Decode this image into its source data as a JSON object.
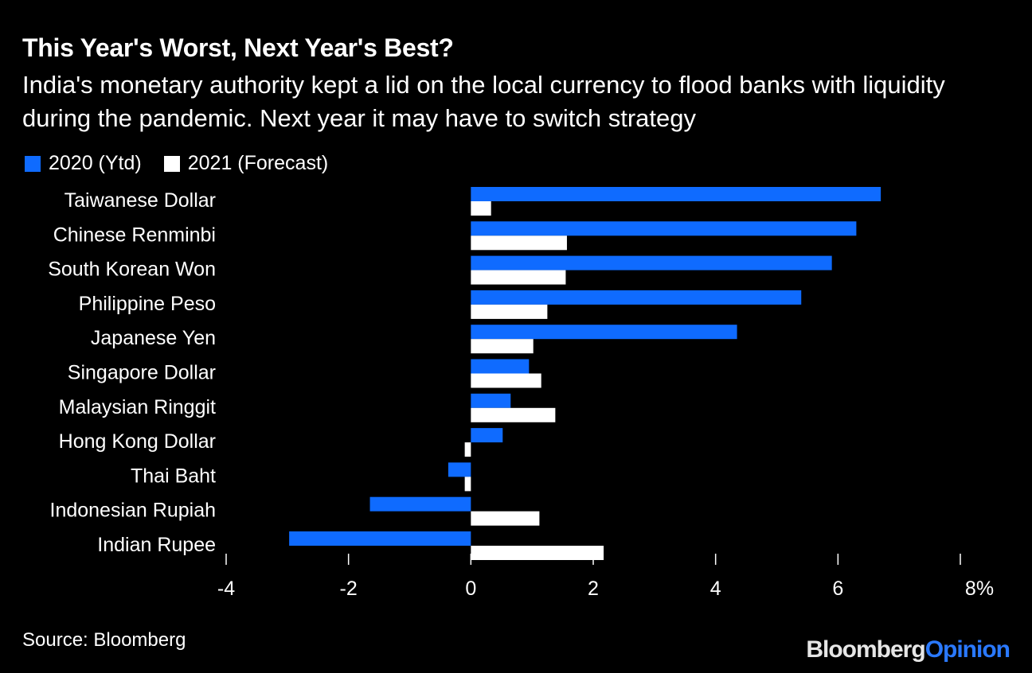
{
  "header": {
    "title": "This Year's Worst, Next Year's Best?",
    "subtitle": "India's monetary authority kept a lid on the local currency to flood banks with liquidity during the pandemic. Next year it may have to switch strategy"
  },
  "colors": {
    "background": "#000000",
    "series_2020": "#0f6bff",
    "series_2021": "#ffffff",
    "text": "#ffffff"
  },
  "chart_data": {
    "type": "bar",
    "orientation": "horizontal",
    "title": "This Year's Worst, Next Year's Best?",
    "xlabel": "",
    "ylabel": "",
    "xlim": [
      -4,
      8
    ],
    "x_ticks": [
      -4,
      -2,
      0,
      2,
      4,
      6,
      8
    ],
    "x_tick_labels": [
      "-4",
      "-2",
      "0",
      "2",
      "4",
      "6",
      "8%"
    ],
    "categories": [
      "Taiwanese Dollar",
      "Chinese Renminbi",
      "South Korean Won",
      "Philippine Peso",
      "Japanese Yen",
      "Singapore Dollar",
      "Malaysian Ringgit",
      "Hong Kong Dollar",
      "Thai Baht",
      "Indonesian Rupiah",
      "Indian Rupee"
    ],
    "series": [
      {
        "name": "2020 (Ytd)",
        "values": [
          6.7,
          6.3,
          5.9,
          5.4,
          4.35,
          0.95,
          0.65,
          0.52,
          -0.37,
          -1.65,
          -2.97
        ]
      },
      {
        "name": "2021 (Forecast)",
        "values": [
          0.33,
          1.57,
          1.55,
          1.25,
          1.02,
          1.15,
          1.38,
          -0.1,
          -0.1,
          1.12,
          2.17
        ]
      }
    ],
    "legend": "top-left",
    "grid": false
  },
  "footer": {
    "source": "Source: Bloomberg",
    "brand_part1": "Bloomberg",
    "brand_part2": "Opinion"
  }
}
